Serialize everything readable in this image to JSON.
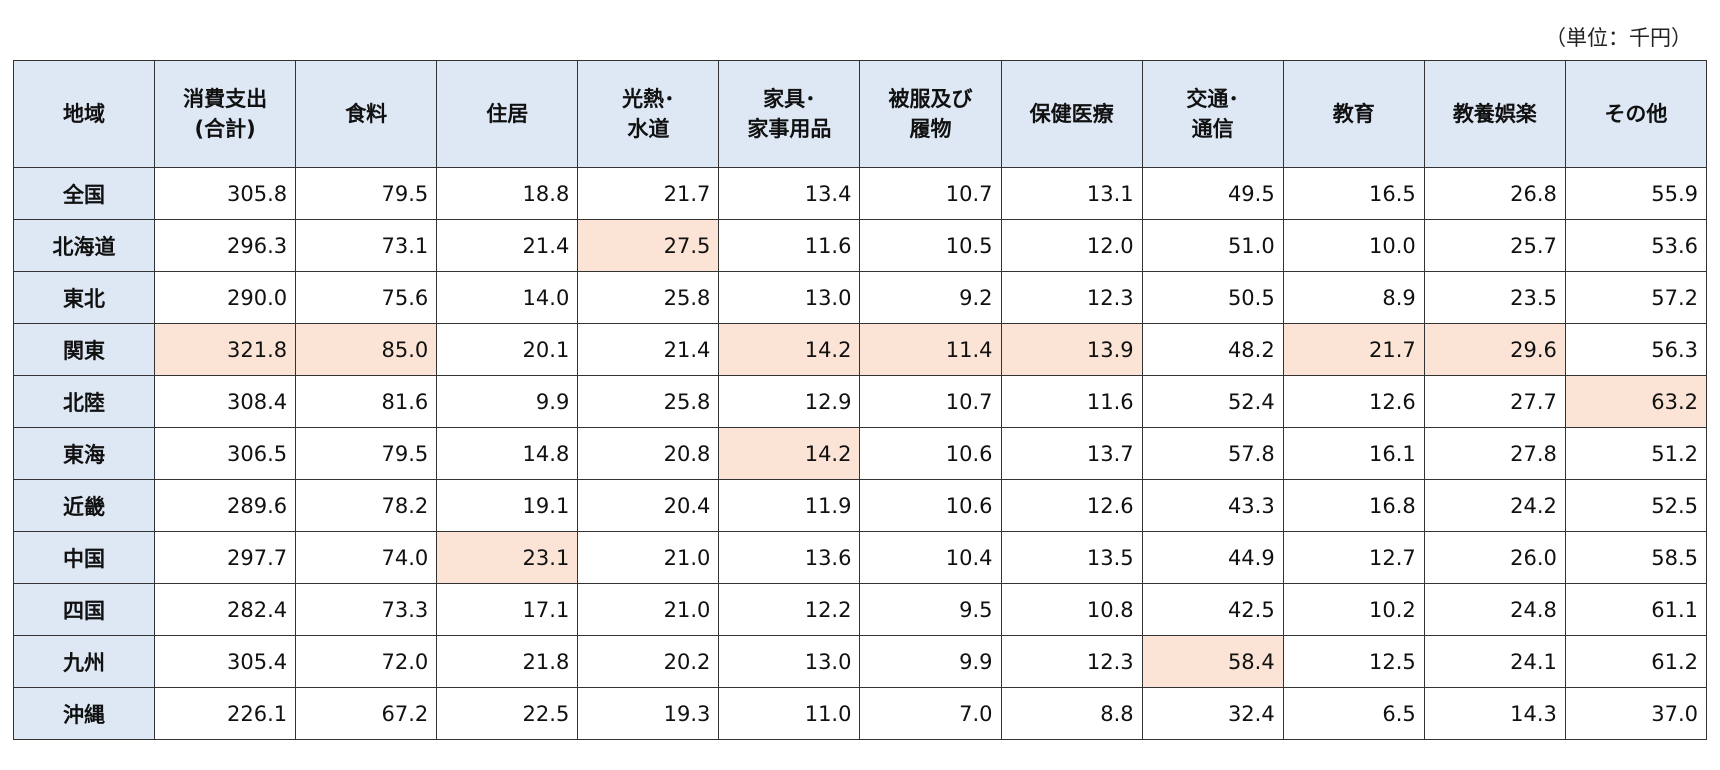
{
  "unit": "（単位：千円）",
  "table": {
    "header": [
      "地域",
      "消費支出\n(合計)",
      "食料",
      "住居",
      "光熱･\n水道",
      "家具･\n家事用品",
      "被服及び\n履物",
      "保健医療",
      "交通･\n通信",
      "教育",
      "教養娯楽",
      "その他"
    ],
    "rows": [
      {
        "region": "全国",
        "values": [
          "305.8",
          "79.5",
          "18.8",
          "21.7",
          "13.4",
          "10.7",
          "13.1",
          "49.5",
          "16.5",
          "26.8",
          "55.9"
        ],
        "highlight": []
      },
      {
        "region": "北海道",
        "values": [
          "296.3",
          "73.1",
          "21.4",
          "27.5",
          "11.6",
          "10.5",
          "12.0",
          "51.0",
          "10.0",
          "25.7",
          "53.6"
        ],
        "highlight": [
          3
        ]
      },
      {
        "region": "東北",
        "values": [
          "290.0",
          "75.6",
          "14.0",
          "25.8",
          "13.0",
          "9.2",
          "12.3",
          "50.5",
          "8.9",
          "23.5",
          "57.2"
        ],
        "highlight": []
      },
      {
        "region": "関東",
        "values": [
          "321.8",
          "85.0",
          "20.1",
          "21.4",
          "14.2",
          "11.4",
          "13.9",
          "48.2",
          "21.7",
          "29.6",
          "56.3"
        ],
        "highlight": [
          0,
          1,
          4,
          5,
          6,
          8,
          9
        ]
      },
      {
        "region": "北陸",
        "values": [
          "308.4",
          "81.6",
          "9.9",
          "25.8",
          "12.9",
          "10.7",
          "11.6",
          "52.4",
          "12.6",
          "27.7",
          "63.2"
        ],
        "highlight": [
          10
        ]
      },
      {
        "region": "東海",
        "values": [
          "306.5",
          "79.5",
          "14.8",
          "20.8",
          "14.2",
          "10.6",
          "13.7",
          "57.8",
          "16.1",
          "27.8",
          "51.2"
        ],
        "highlight": [
          4
        ]
      },
      {
        "region": "近畿",
        "values": [
          "289.6",
          "78.2",
          "19.1",
          "20.4",
          "11.9",
          "10.6",
          "12.6",
          "43.3",
          "16.8",
          "24.2",
          "52.5"
        ],
        "highlight": []
      },
      {
        "region": "中国",
        "values": [
          "297.7",
          "74.0",
          "23.1",
          "21.0",
          "13.6",
          "10.4",
          "13.5",
          "44.9",
          "12.7",
          "26.0",
          "58.5"
        ],
        "highlight": [
          2
        ]
      },
      {
        "region": "四国",
        "values": [
          "282.4",
          "73.3",
          "17.1",
          "21.0",
          "12.2",
          "9.5",
          "10.8",
          "42.5",
          "10.2",
          "24.8",
          "61.1"
        ],
        "highlight": []
      },
      {
        "region": "九州",
        "values": [
          "305.4",
          "72.0",
          "21.8",
          "20.2",
          "13.0",
          "9.9",
          "12.3",
          "58.4",
          "12.5",
          "24.1",
          "61.2"
        ],
        "highlight": [
          7
        ]
      },
      {
        "region": "沖縄",
        "values": [
          "226.1",
          "67.2",
          "22.5",
          "19.3",
          "11.0",
          "7.0",
          "8.8",
          "32.4",
          "6.5",
          "14.3",
          "37.0"
        ],
        "highlight": []
      }
    ]
  }
}
